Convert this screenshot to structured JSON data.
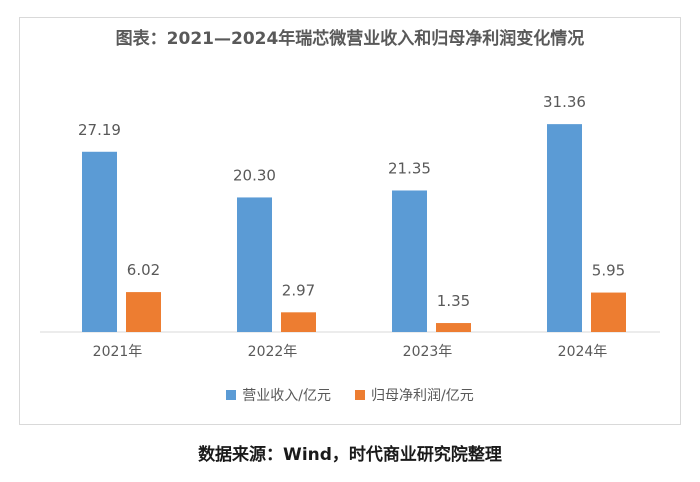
{
  "title": "图表：2021—2024年瑞芯微营业收入和归母净利润变化情况",
  "source": "数据来源：Wind，时代商业研究院整理",
  "colors": {
    "revenue": "#5b9bd5",
    "profit": "#ed7d31",
    "axis": "#d9d9d9",
    "text": "#595959"
  },
  "chart_data": {
    "type": "bar",
    "title": "图表：2021—2024年瑞芯微营业收入和归母净利润变化情况",
    "categories": [
      "2021年",
      "2022年",
      "2023年",
      "2024年"
    ],
    "series": [
      {
        "name": "营业收入/亿元",
        "values": [
          27.19,
          20.3,
          21.35,
          31.36
        ],
        "labels": [
          "27.19",
          "20.30",
          "21.35",
          "31.36"
        ]
      },
      {
        "name": "归母净利润/亿元",
        "values": [
          6.02,
          2.97,
          1.35,
          5.95
        ],
        "labels": [
          "6.02",
          "2.97",
          "1.35",
          "5.95"
        ]
      }
    ],
    "xlabel": "",
    "ylabel": "",
    "ylim": [
      0,
      35
    ],
    "grid": false,
    "legend": "bottom"
  }
}
